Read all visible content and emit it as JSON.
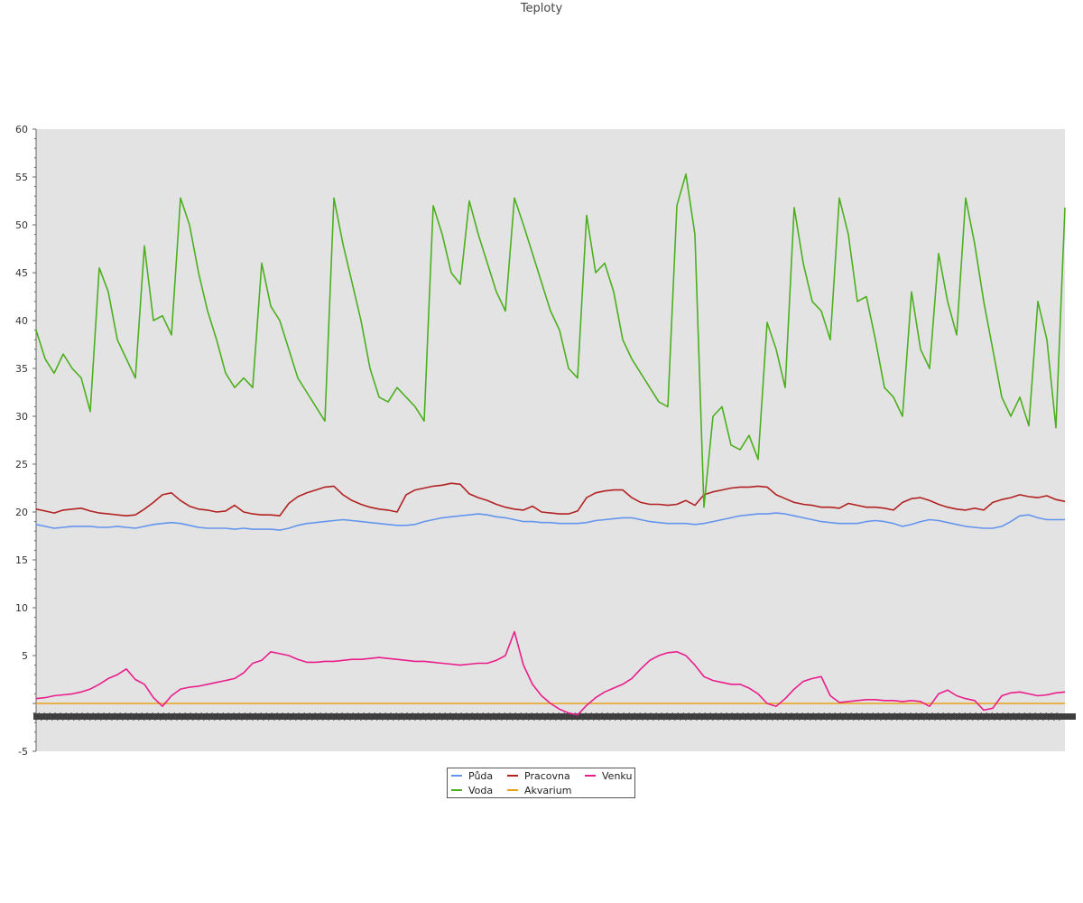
{
  "chart_data": {
    "type": "line",
    "title": "Teploty",
    "xlabel": "",
    "ylabel": "",
    "ylim": [
      -5,
      60
    ],
    "y_ticks": [
      -5,
      5,
      10,
      15,
      20,
      25,
      30,
      35,
      40,
      45,
      50,
      55,
      60
    ],
    "grid": false,
    "legend_position": "bottom-center",
    "plot_background": "#e3e3e3",
    "x": [
      0,
      1,
      2,
      3,
      4,
      5,
      6,
      7,
      8,
      9,
      10,
      11,
      12,
      13,
      14,
      15,
      16,
      17,
      18,
      19,
      20,
      21,
      22,
      23,
      24,
      25,
      26,
      27,
      28,
      29,
      30,
      31,
      32,
      33,
      34,
      35,
      36,
      37,
      38,
      39,
      40,
      41,
      42,
      43,
      44,
      45,
      46,
      47,
      48,
      49,
      50,
      51,
      52,
      53,
      54,
      55,
      56,
      57,
      58,
      59,
      60,
      61,
      62,
      63,
      64,
      65,
      66,
      67,
      68,
      69,
      70,
      71,
      72,
      73,
      74,
      75,
      76,
      77,
      78,
      79,
      80,
      81,
      82,
      83,
      84,
      85,
      86,
      87,
      88,
      89,
      90,
      91,
      92,
      93,
      94,
      95,
      96,
      97,
      98,
      99,
      100,
      101,
      102,
      103,
      104,
      105,
      106,
      107,
      108,
      109,
      110,
      111,
      112,
      113,
      114
    ],
    "series": [
      {
        "name": "Půda",
        "color": "#6495ed",
        "values": [
          18.7,
          18.5,
          18.3,
          18.4,
          18.5,
          18.5,
          18.5,
          18.4,
          18.4,
          18.5,
          18.4,
          18.3,
          18.5,
          18.7,
          18.8,
          18.9,
          18.8,
          18.6,
          18.4,
          18.3,
          18.3,
          18.3,
          18.2,
          18.3,
          18.2,
          18.2,
          18.2,
          18.1,
          18.3,
          18.6,
          18.8,
          18.9,
          19.0,
          19.1,
          19.2,
          19.1,
          19.0,
          18.9,
          18.8,
          18.7,
          18.6,
          18.6,
          18.7,
          19.0,
          19.2,
          19.4,
          19.5,
          19.6,
          19.7,
          19.8,
          19.7,
          19.5,
          19.4,
          19.2,
          19.0,
          19.0,
          18.9,
          18.9,
          18.8,
          18.8,
          18.8,
          18.9,
          19.1,
          19.2,
          19.3,
          19.4,
          19.4,
          19.2,
          19.0,
          18.9,
          18.8,
          18.8,
          18.8,
          18.7,
          18.8,
          19.0,
          19.2,
          19.4,
          19.6,
          19.7,
          19.8,
          19.8,
          19.9,
          19.8,
          19.6,
          19.4,
          19.2,
          19.0,
          18.9,
          18.8,
          18.8,
          18.8,
          19.0,
          19.1,
          19.0,
          18.8,
          18.5,
          18.7,
          19.0,
          19.2,
          19.1,
          18.9,
          18.7,
          18.5,
          18.4,
          18.3,
          18.3,
          18.5,
          19.0,
          19.6,
          19.7,
          19.4,
          19.2,
          19.2,
          19.2
        ]
      },
      {
        "name": "Voda",
        "color": "#4cb01e",
        "values": [
          39.0,
          36.0,
          34.5,
          36.5,
          35.0,
          34.0,
          30.5,
          45.5,
          43.0,
          38.0,
          36.0,
          34.0,
          47.8,
          40.0,
          40.5,
          38.5,
          52.8,
          50.0,
          45.0,
          41.0,
          38.0,
          34.5,
          33.0,
          34.0,
          33.0,
          46.0,
          41.5,
          40.0,
          37.0,
          34.0,
          32.5,
          31.0,
          29.5,
          52.8,
          48.0,
          44.0,
          40.0,
          35.0,
          32.0,
          31.5,
          33.0,
          32.0,
          31.0,
          29.5,
          52.0,
          49.0,
          45.0,
          43.8,
          52.5,
          49.0,
          46.0,
          43.0,
          41.0,
          52.8,
          50.0,
          47.0,
          44.0,
          41.0,
          39.0,
          35.0,
          34.0,
          51.0,
          45.0,
          46.0,
          43.0,
          38.0,
          36.0,
          34.5,
          33.0,
          31.5,
          31.0,
          52.0,
          55.3,
          49.0,
          20.5,
          30.0,
          31.0,
          27.0,
          26.5,
          28.0,
          25.5,
          39.8,
          37.0,
          33.0,
          51.8,
          46.0,
          42.0,
          41.0,
          38.0,
          52.8,
          49.0,
          42.0,
          42.5,
          38.0,
          33.0,
          32.0,
          30.0,
          43.0,
          37.0,
          35.0,
          47.0,
          42.0,
          38.5,
          52.8,
          48.0,
          42.0,
          37.0,
          32.0,
          30.0,
          32.0,
          29.0,
          42.0,
          38.0,
          28.8,
          51.8
        ]
      },
      {
        "name": "Pracovna",
        "color": "#b22222",
        "values": [
          20.3,
          20.1,
          19.9,
          20.2,
          20.3,
          20.4,
          20.1,
          19.9,
          19.8,
          19.7,
          19.6,
          19.7,
          20.3,
          21.0,
          21.8,
          22.0,
          21.2,
          20.6,
          20.3,
          20.2,
          20.0,
          20.1,
          20.7,
          20.0,
          19.8,
          19.7,
          19.7,
          19.6,
          20.9,
          21.6,
          22.0,
          22.3,
          22.6,
          22.7,
          21.8,
          21.2,
          20.8,
          20.5,
          20.3,
          20.2,
          20.0,
          21.8,
          22.3,
          22.5,
          22.7,
          22.8,
          23.0,
          22.9,
          21.9,
          21.5,
          21.2,
          20.8,
          20.5,
          20.3,
          20.2,
          20.6,
          20.0,
          19.9,
          19.8,
          19.8,
          20.1,
          21.5,
          22.0,
          22.2,
          22.3,
          22.3,
          21.5,
          21.0,
          20.8,
          20.8,
          20.7,
          20.8,
          21.2,
          20.7,
          21.8,
          22.1,
          22.3,
          22.5,
          22.6,
          22.6,
          22.7,
          22.6,
          21.8,
          21.4,
          21.0,
          20.8,
          20.7,
          20.5,
          20.5,
          20.4,
          20.9,
          20.7,
          20.5,
          20.5,
          20.4,
          20.2,
          21.0,
          21.4,
          21.5,
          21.2,
          20.8,
          20.5,
          20.3,
          20.2,
          20.4,
          20.2,
          21.0,
          21.3,
          21.5,
          21.8,
          21.6,
          21.5,
          21.7,
          21.3,
          21.1
        ]
      },
      {
        "name": "Akvarium",
        "color": "#e8a317",
        "values": [
          0.0,
          0.0,
          0.0,
          0.0,
          0.0,
          0.0,
          0.0,
          0.0,
          0.0,
          0.0,
          0.0,
          0.0,
          0.0,
          0.0,
          0.0,
          0.0,
          0.0,
          0.0,
          0.0,
          0.0,
          0.0,
          0.0,
          0.0,
          0.0,
          0.0,
          0.0,
          0.0,
          0.0,
          0.0,
          0.0,
          0.0,
          0.0,
          0.0,
          0.0,
          0.0,
          0.0,
          0.0,
          0.0,
          0.0,
          0.0,
          0.0,
          0.0,
          0.0,
          0.0,
          0.0,
          0.0,
          0.0,
          0.0,
          0.0,
          0.0,
          0.0,
          0.0,
          0.0,
          0.0,
          0.0,
          0.0,
          0.0,
          0.0,
          0.0,
          0.0,
          0.0,
          0.0,
          0.0,
          0.0,
          0.0,
          0.0,
          0.0,
          0.0,
          0.0,
          0.0,
          0.0,
          0.0,
          0.0,
          0.0,
          0.0,
          0.0,
          0.0,
          0.0,
          0.0,
          0.0,
          0.0,
          0.0,
          0.0,
          0.0,
          0.0,
          0.0,
          0.0,
          0.0,
          0.0,
          0.0,
          0.0,
          0.0,
          0.0,
          0.0,
          0.0,
          0.0,
          0.0,
          0.0,
          0.0,
          0.0,
          0.0,
          0.0,
          0.0,
          0.0,
          0.0,
          0.0,
          0.0,
          0.0,
          0.0,
          0.0,
          0.0,
          0.0,
          0.0,
          0.0,
          0.0
        ]
      },
      {
        "name": "Venku",
        "color": "#e91e8c",
        "values": [
          0.5,
          0.6,
          0.8,
          0.9,
          1.0,
          1.2,
          1.5,
          2.0,
          2.6,
          3.0,
          3.6,
          2.5,
          2.0,
          0.6,
          -0.3,
          0.8,
          1.5,
          1.7,
          1.8,
          2.0,
          2.2,
          2.4,
          2.6,
          3.2,
          4.2,
          4.5,
          5.4,
          5.2,
          5.0,
          4.6,
          4.3,
          4.3,
          4.4,
          4.4,
          4.5,
          4.6,
          4.6,
          4.7,
          4.8,
          4.7,
          4.6,
          4.5,
          4.4,
          4.4,
          4.3,
          4.2,
          4.1,
          4.0,
          4.1,
          4.2,
          4.2,
          4.5,
          5.0,
          7.5,
          4.0,
          2.0,
          0.8,
          0.0,
          -0.6,
          -1.0,
          -1.2,
          -0.2,
          0.6,
          1.2,
          1.6,
          2.0,
          2.6,
          3.6,
          4.5,
          5.0,
          5.3,
          5.4,
          5.0,
          4.0,
          2.8,
          2.4,
          2.2,
          2.0,
          2.0,
          1.6,
          1.0,
          0.0,
          -0.3,
          0.5,
          1.5,
          2.3,
          2.6,
          2.8,
          0.8,
          0.1,
          0.2,
          0.3,
          0.4,
          0.4,
          0.3,
          0.3,
          0.2,
          0.3,
          0.2,
          -0.3,
          1.0,
          1.4,
          0.8,
          0.5,
          0.3,
          -0.7,
          -0.5,
          0.8,
          1.1,
          1.2,
          1.0,
          0.8,
          0.9,
          1.1,
          1.2
        ]
      }
    ]
  },
  "legend": {
    "items": [
      {
        "label": "Půda",
        "color": "#6495ed"
      },
      {
        "label": "Pracovna",
        "color": "#b22222"
      },
      {
        "label": "Venku",
        "color": "#e91e8c"
      },
      {
        "label": "Voda",
        "color": "#4cb01e"
      },
      {
        "label": "Akvarium",
        "color": "#e8a317"
      }
    ]
  }
}
